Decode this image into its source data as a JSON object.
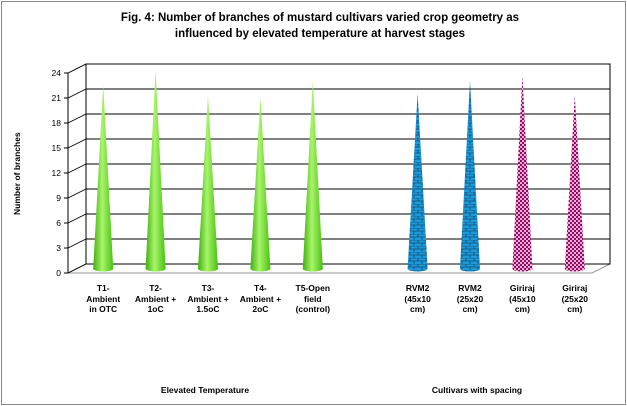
{
  "chart_data": {
    "type": "bar",
    "title": "Fig. 4: Number of branches of mustard cultivars varied crop geometry  as influenced by elevated temperature at harvest stages",
    "ylabel": "Number of branches",
    "ylim": [
      0,
      24
    ],
    "yticks": [
      "0",
      "3",
      "6",
      "9",
      "12",
      "15",
      "18",
      "21",
      "24"
    ],
    "categories": [
      "T1-\nAmbient\nin OTC",
      "T2-\nAmbient +\n1oC",
      "T3-\nAmbient +\n1.5oC",
      "T4-\nAmbient +\n2oC",
      "T5-Open\nfield\n(control)",
      "",
      "RVM2\n(45x10\ncm)",
      "RVM2\n(25x20\ncm)",
      "Giriraj\n(45x10\ncm)",
      "Giriraj\n(25x20\ncm)"
    ],
    "values": [
      22,
      23.8,
      20.8,
      20.5,
      22.5,
      null,
      21,
      22.5,
      23.2,
      20.8
    ],
    "group_labels": [
      "Elevated Temperature",
      "Cultivars with spacing"
    ],
    "colors": {
      "elevated": "#66dd22",
      "rvm2": "#1e9ad8",
      "giriraj": "#cc2f8f",
      "gridline": "#000000",
      "wall": "#ffffff"
    },
    "grid": true,
    "legend": "none"
  }
}
